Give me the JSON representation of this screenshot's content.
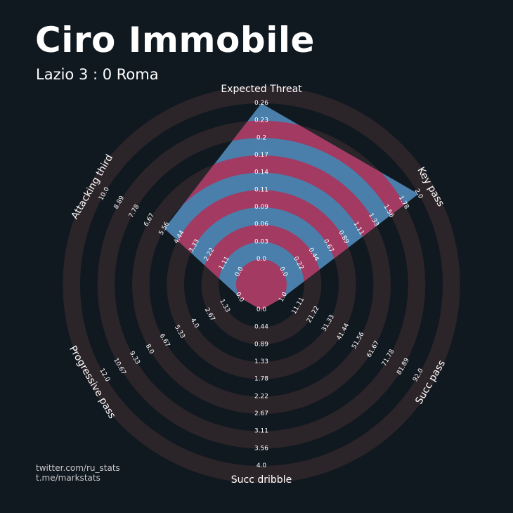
{
  "header": {
    "title": "Ciro Immobile",
    "subtitle": "Lazio 3 : 0 Roma"
  },
  "credits": {
    "line1": "twitter.com/ru_stats",
    "line2": "t.me/markstats"
  },
  "colors": {
    "background": "#101820",
    "ring_background": "#2b2429",
    "fill_primary": "#4a7fab",
    "fill_secondary": "#a23a62",
    "text": "#ffffff"
  },
  "chart_data": {
    "type": "radar",
    "parameters": [
      {
        "label": "Expected Threat",
        "min": 0.0,
        "max": 0.26,
        "value": 0.26,
        "ticks": [
          "0.0",
          "0.03",
          "0.06",
          "0.09",
          "0.11",
          "0.14",
          "0.17",
          "0.2",
          "0.23",
          "0.26"
        ]
      },
      {
        "label": "Key pass",
        "min": 0.0,
        "max": 2.0,
        "value": 2.0,
        "ticks": [
          "0.0",
          "0.22",
          "0.44",
          "0.67",
          "0.89",
          "1.11",
          "1.33",
          "1.56",
          "1.78",
          "2.0"
        ]
      },
      {
        "label": "Succ pass",
        "min": 11.11,
        "max": 92.0,
        "value": 11.11,
        "ticks": [
          "1.0",
          "11.11",
          "21.22",
          "31.33",
          "41.44",
          "51.56",
          "61.67",
          "71.78",
          "81.89",
          "92.0"
        ]
      },
      {
        "label": "Succ dribble",
        "min": 0.0,
        "max": 4.0,
        "value": 0.0,
        "ticks": [
          "0.0",
          "0.44",
          "0.89",
          "1.33",
          "1.78",
          "2.22",
          "2.67",
          "3.11",
          "3.56",
          "4.0"
        ]
      },
      {
        "label": "Progressive pass",
        "min": 1.33,
        "max": 12.0,
        "value": 1.33,
        "ticks": [
          "0.0",
          "1.33",
          "2.67",
          "4.0",
          "5.33",
          "6.67",
          "8.0",
          "9.33",
          "10.67",
          "12.0"
        ]
      },
      {
        "label": "Attacking third",
        "min": 0.0,
        "max": 10.0,
        "value": 5.56,
        "ticks": [
          "0.0",
          "1.11",
          "2.22",
          "3.33",
          "4.44",
          "5.56",
          "6.67",
          "7.78",
          "8.89",
          "10.0"
        ]
      }
    ]
  }
}
